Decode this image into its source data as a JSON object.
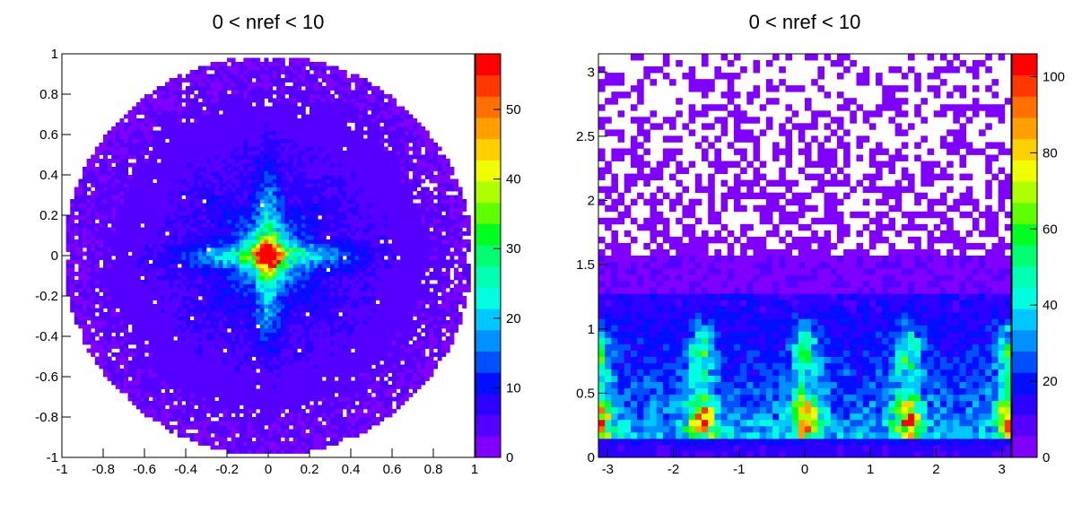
{
  "chart_data": [
    {
      "type": "heatmap",
      "title": "0 < nref < 10",
      "xlabel": "",
      "ylabel": "",
      "xlim": [
        -1,
        1
      ],
      "ylim": [
        -1,
        1
      ],
      "x_ticks": [
        "-1",
        "-0.8",
        "-0.6",
        "-0.4",
        "-0.2",
        "0",
        "0.2",
        "0.4",
        "0.6",
        "0.8",
        "1"
      ],
      "y_ticks": [
        "-1",
        "-0.8",
        "-0.6",
        "-0.4",
        "-0.2",
        "0",
        "0.2",
        "0.4",
        "0.6",
        "0.8",
        "1"
      ],
      "colorbar": {
        "range": [
          0,
          58
        ],
        "tick_values": [
          0,
          10,
          20,
          30,
          40,
          50
        ],
        "tick_labels": [
          "0",
          "10",
          "20",
          "30",
          "40",
          "50"
        ]
      },
      "bins": [
        100,
        100
      ],
      "structure": "disk of radius 1 with cross-shaped arms along x and y axes peaking near 58 at the origin; background 2-10 counts; scattered empty bins near the rim"
    },
    {
      "type": "heatmap",
      "title": "0 < nref < 10",
      "xlabel": "",
      "ylabel": "",
      "xlim": [
        -3.1416,
        3.1416
      ],
      "ylim": [
        0,
        3.1416
      ],
      "x_ticks": [
        "-3",
        "-2",
        "-1",
        "0",
        "1",
        "2",
        "3"
      ],
      "y_ticks": [
        "0",
        "0.5",
        "1",
        "1.5",
        "2",
        "2.5",
        "3"
      ],
      "colorbar": {
        "range": [
          0,
          106
        ],
        "tick_values": [
          0,
          20,
          40,
          60,
          80,
          100
        ],
        "tick_labels": [
          "0",
          "20",
          "40",
          "60",
          "80",
          "100"
        ]
      },
      "bins": [
        64,
        64
      ],
      "structure": "dense band below y=1.5 with peaks (~100) near x = -1.57, 0, 1.57, 3.1 at y 0.2-0.4; sparse low counts above y=1.5"
    }
  ],
  "colors": {
    "palette": [
      "#7f00ff",
      "#5500ff",
      "#2b00ff",
      "#0010ff",
      "#0050ff",
      "#0090ff",
      "#00c8ff",
      "#00ffe0",
      "#00ffb0",
      "#00ff70",
      "#00ff20",
      "#60ff00",
      "#b0ff00",
      "#f0ff00",
      "#ffd000",
      "#ffa000",
      "#ff7000",
      "#ff3800",
      "#ff0000"
    ],
    "empty": "#ffffff",
    "frame": "#000000"
  }
}
